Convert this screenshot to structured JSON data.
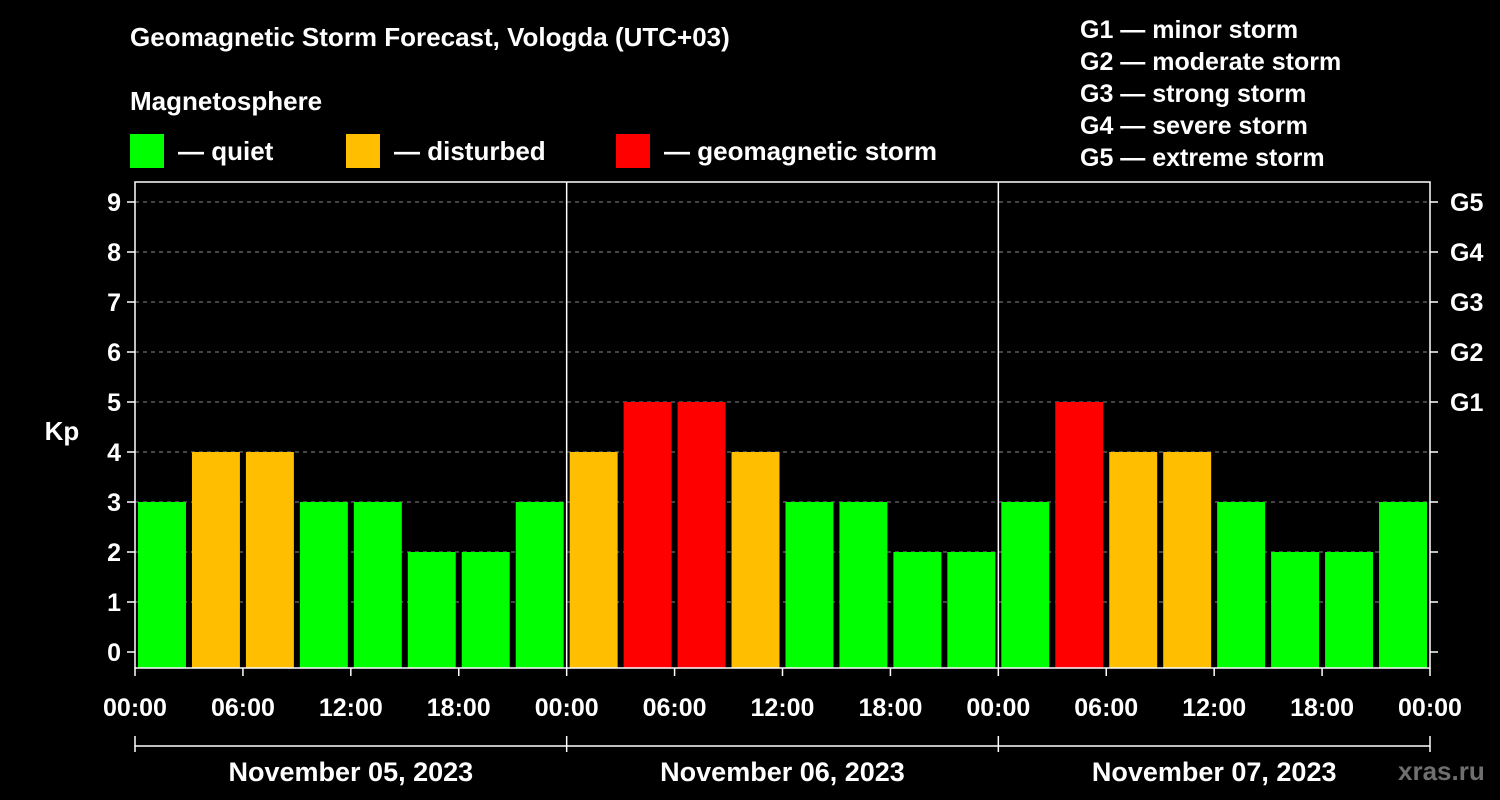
{
  "title": "Geomagnetic Storm Forecast, Vologda (UTC+03)",
  "subtitle": "Magnetosphere",
  "legend": [
    {
      "label": "— quiet",
      "color": "#00ff00"
    },
    {
      "label": "— disturbed",
      "color": "#ffbf00"
    },
    {
      "label": "— geomagnetic storm",
      "color": "#ff0000"
    }
  ],
  "g_levels": [
    "G1 — minor storm",
    "G2 — moderate storm",
    "G3 — strong storm",
    "G4 — severe storm",
    "G5 — extreme storm"
  ],
  "watermark": "xras.ru",
  "chart_data": {
    "type": "bar",
    "ylabel": "Kp",
    "ylim": [
      0,
      9
    ],
    "y_ticks": [
      0,
      1,
      2,
      3,
      4,
      5,
      6,
      7,
      8,
      9
    ],
    "right_axis_labels": [
      {
        "value": 5,
        "label": "G1"
      },
      {
        "value": 6,
        "label": "G2"
      },
      {
        "value": 7,
        "label": "G3"
      },
      {
        "value": 8,
        "label": "G4"
      },
      {
        "value": 9,
        "label": "G5"
      }
    ],
    "x_tick_labels": [
      "00:00",
      "06:00",
      "12:00",
      "18:00",
      "00:00",
      "06:00",
      "12:00",
      "18:00",
      "00:00",
      "06:00",
      "12:00",
      "18:00",
      "00:00"
    ],
    "days": [
      "November 05, 2023",
      "November 06, 2023",
      "November 07, 2023"
    ],
    "interval_hours": 3,
    "values": [
      3,
      4,
      4,
      3,
      3,
      2,
      2,
      3,
      4,
      5,
      5,
      4,
      3,
      3,
      2,
      2,
      3,
      5,
      4,
      4,
      3,
      2,
      2,
      3
    ],
    "color_thresholds": {
      "quiet_max": 3,
      "disturbed_max": 4
    },
    "colors": {
      "quiet": "#00ff00",
      "disturbed": "#ffbf00",
      "storm": "#ff0000",
      "grid": "#888888",
      "axis": "#ffffff"
    },
    "grid": true
  }
}
